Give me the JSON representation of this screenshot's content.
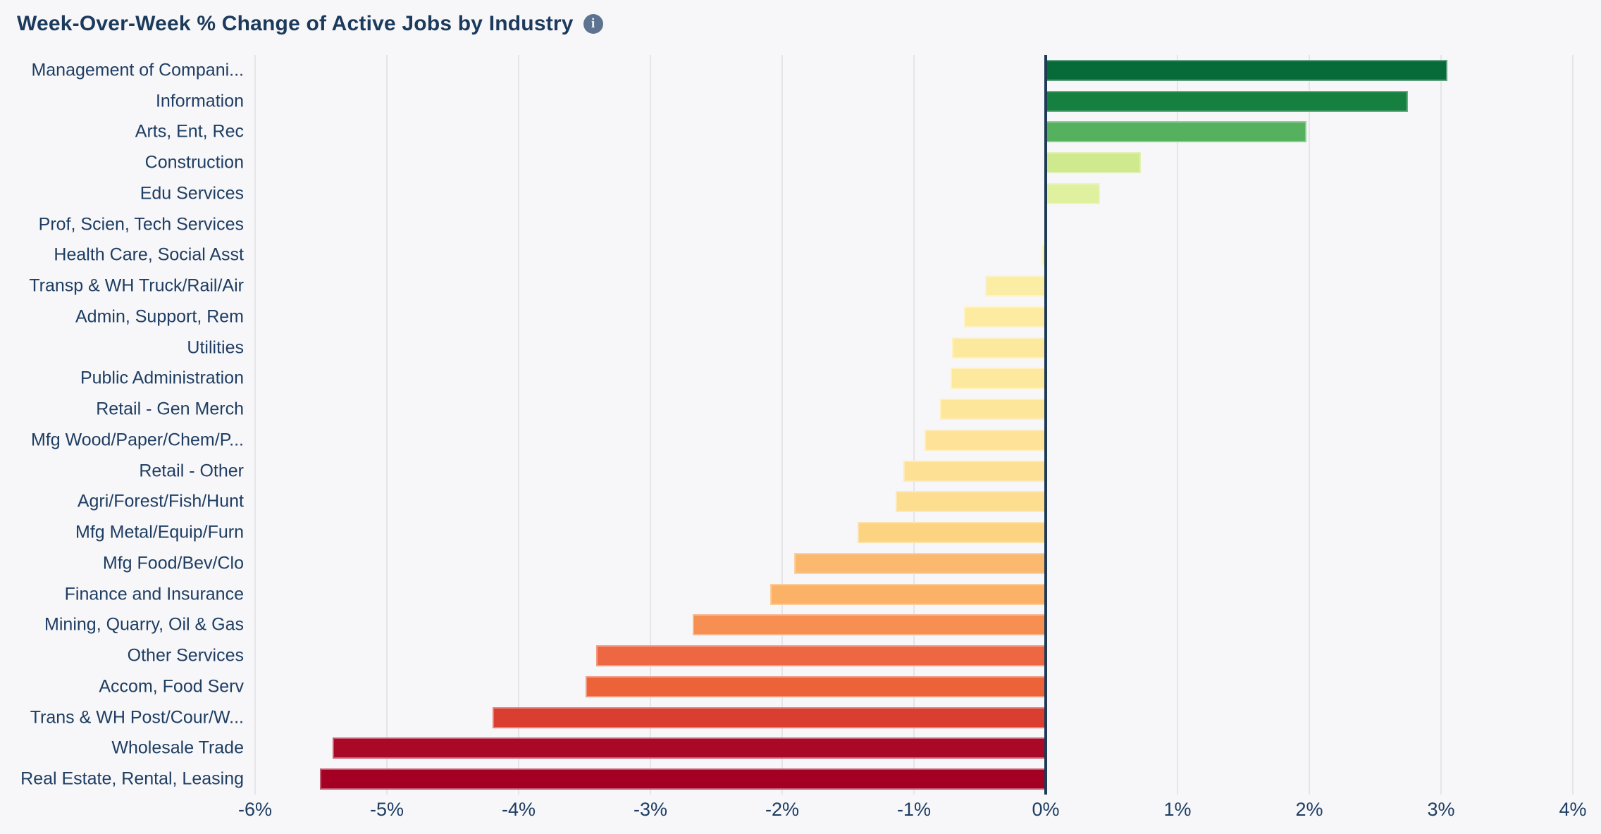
{
  "header": {
    "title": "Week-Over-Week % Change of Active Jobs by Industry",
    "info_glyph": "i"
  },
  "colors": {
    "background": "#f7f7f9",
    "title_text": "#1b3a5c",
    "label_text": "#1e3d62",
    "tick_text": "#1e3d62",
    "gridline": "#e5e5e8",
    "zero_line": "#1e3a54",
    "info_icon_bg": "#5d7390"
  },
  "chart_data": {
    "type": "bar",
    "orientation": "horizontal",
    "title": "Week-Over-Week % Change of Active Jobs by Industry",
    "xlabel": "",
    "ylabel": "",
    "xlim": [
      -6,
      4
    ],
    "grid": true,
    "x_ticks": [
      -6,
      -5,
      -4,
      -3,
      -2,
      -1,
      0,
      1,
      2,
      3,
      4
    ],
    "x_tick_labels": [
      "-6%",
      "-5%",
      "-4%",
      "-3%",
      "-2%",
      "-1%",
      "0%",
      "1%",
      "2%",
      "3%",
      "4%"
    ],
    "value_unit": "%",
    "categories": [
      "Management of Compani...",
      "Information",
      "Arts, Ent, Rec",
      "Construction",
      "Edu Services",
      "Prof, Scien, Tech Services",
      "Health Care, Social Asst",
      "Transp & WH Truck/Rail/Air",
      "Admin, Support, Rem",
      "Utilities",
      "Public Administration",
      "Retail - Gen Merch",
      "Mfg Wood/Paper/Chem/P...",
      "Retail - Other",
      "Agri/Forest/Fish/Hunt",
      "Mfg Metal/Equip/Furn",
      "Mfg Food/Bev/Clo",
      "Finance and Insurance",
      "Mining, Quarry, Oil & Gas",
      "Other Services",
      "Accom, Food Serv",
      "Trans & WH Post/Cour/W...",
      "Wholesale Trade",
      "Real Estate, Rental, Leasing"
    ],
    "values": [
      3.05,
      2.75,
      1.98,
      0.72,
      0.41,
      -0.01,
      -0.03,
      -0.46,
      -0.62,
      -0.71,
      -0.72,
      -0.8,
      -0.92,
      -1.08,
      -1.14,
      -1.43,
      -1.91,
      -2.09,
      -2.68,
      -3.41,
      -3.49,
      -4.2,
      -5.41,
      -5.51
    ],
    "bar_colors": [
      "#066a39",
      "#15803f",
      "#55b15e",
      "#cfe98f",
      "#dff09e",
      "#f5f6ae",
      "#faf3ac",
      "#fceda5",
      "#fceba1",
      "#fde99e",
      "#fde99d",
      "#fde69a",
      "#fde298",
      "#fde093",
      "#fdde90",
      "#fcd381",
      "#fbb96f",
      "#fbb166",
      "#f68f51",
      "#ee6743",
      "#ec6339",
      "#d93e31",
      "#a90827",
      "#a30023"
    ]
  }
}
